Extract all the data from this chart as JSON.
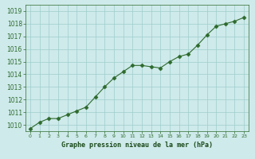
{
  "hours": [
    0,
    1,
    2,
    3,
    4,
    5,
    6,
    7,
    8,
    9,
    10,
    11,
    12,
    13,
    14,
    15,
    16,
    17,
    18,
    19,
    20,
    21,
    22,
    23
  ],
  "pressure": [
    1009.7,
    1010.2,
    1010.5,
    1010.5,
    1010.8,
    1011.1,
    1011.4,
    1012.2,
    1013.0,
    1013.7,
    1014.2,
    1014.7,
    1014.7,
    1014.6,
    1014.5,
    1015.0,
    1015.4,
    1015.6,
    1016.3,
    1017.1,
    1017.8,
    1018.0,
    1018.2,
    1018.5
  ],
  "line_color": "#2d6a2d",
  "marker": "D",
  "marker_size": 2.5,
  "bg_color": "#ceeaea",
  "grid_color": "#a0cccc",
  "xlabel": "Graphe pression niveau de la mer (hPa)",
  "xlabel_color": "#1a4a1a",
  "tick_color": "#2d6a2d",
  "ylim_min": 1009.5,
  "ylim_max": 1019.5,
  "xlim_min": -0.5,
  "xlim_max": 23.5,
  "yticks": [
    1010,
    1011,
    1012,
    1013,
    1014,
    1015,
    1016,
    1017,
    1018,
    1019
  ]
}
